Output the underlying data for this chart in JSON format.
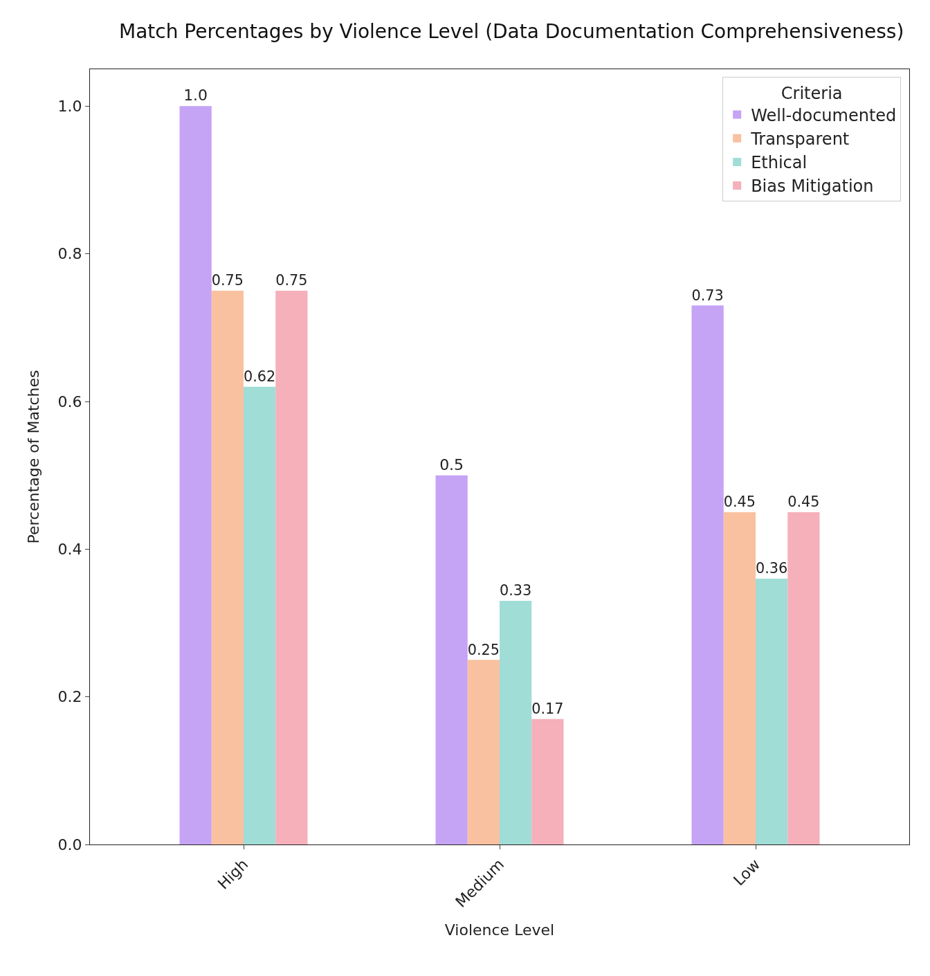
{
  "chart_data": {
    "type": "bar",
    "title": "Match Percentages by Violence Level (Data Documentation Comprehensiveness)",
    "xlabel": "Violence Level",
    "ylabel": "Percentage of Matches",
    "legend_title": "Criteria",
    "categories": [
      "High",
      "Medium",
      "Low"
    ],
    "series": [
      {
        "name": "Well-documented",
        "color": "#c5a3f5",
        "values": [
          1.0,
          0.5,
          0.73
        ],
        "value_labels": [
          "1.0",
          "0.5",
          "0.73"
        ]
      },
      {
        "name": "Transparent",
        "color": "#f9c19f",
        "values": [
          0.75,
          0.25,
          0.45
        ],
        "value_labels": [
          "0.75",
          "0.25",
          "0.45"
        ]
      },
      {
        "name": "Ethical",
        "color": "#a1ddd7",
        "values": [
          0.62,
          0.33,
          0.36
        ],
        "value_labels": [
          "0.62",
          "0.33",
          "0.36"
        ]
      },
      {
        "name": "Bias Mitigation",
        "color": "#f5b0ba",
        "values": [
          0.75,
          0.17,
          0.45
        ],
        "value_labels": [
          "0.75",
          "0.17",
          "0.45"
        ]
      }
    ],
    "ylim": [
      0,
      1.05
    ],
    "yticks": [
      {
        "value": 0,
        "label": "0.0"
      },
      0.2,
      0.4,
      0.6,
      0.8,
      {
        "value": 1,
        "label": "1.0"
      }
    ],
    "grid": false,
    "legend": "top right"
  }
}
